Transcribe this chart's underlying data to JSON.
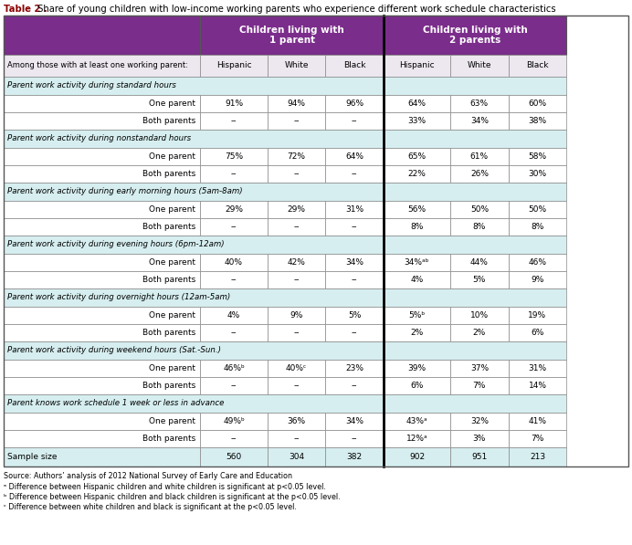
{
  "title_bold": "Table 2 .",
  "title_rest": " Share of young children with low-income working parents who experience different work schedule characteristics",
  "header1": [
    "Children living with\n1 parent",
    "Children living with\n2 parents"
  ],
  "header2": [
    "Hispanic",
    "White",
    "Black",
    "Hispanic",
    "White",
    "Black"
  ],
  "col_label": "Among those with at least one working parent:",
  "sections": [
    {
      "label": "Parent work activity during standard hours",
      "rows": [
        {
          "name": "One parent",
          "vals": [
            "91%",
            "94%",
            "96%",
            "64%",
            "63%",
            "60%"
          ]
        },
        {
          "name": "Both parents",
          "vals": [
            "--",
            "--",
            "--",
            "33%",
            "34%",
            "38%"
          ]
        }
      ]
    },
    {
      "label": "Parent work activity during nonstandard hours",
      "rows": [
        {
          "name": "One parent",
          "vals": [
            "75%",
            "72%",
            "64%",
            "65%",
            "61%",
            "58%"
          ]
        },
        {
          "name": "Both parents",
          "vals": [
            "--",
            "--",
            "--",
            "22%",
            "26%",
            "30%"
          ]
        }
      ]
    },
    {
      "label": "Parent work activity during early morning hours (5am-8am)",
      "rows": [
        {
          "name": "One parent",
          "vals": [
            "29%",
            "29%",
            "31%",
            "56%",
            "50%",
            "50%"
          ]
        },
        {
          "name": "Both parents",
          "vals": [
            "--",
            "--",
            "--",
            "8%",
            "8%",
            "8%"
          ]
        }
      ]
    },
    {
      "label": "Parent work activity during evening hours (6pm-12am)",
      "rows": [
        {
          "name": "One parent",
          "vals": [
            "40%",
            "42%",
            "34%",
            "34%ᵃᵇ",
            "44%",
            "46%"
          ]
        },
        {
          "name": "Both parents",
          "vals": [
            "--",
            "--",
            "--",
            "4%",
            "5%",
            "9%"
          ]
        }
      ]
    },
    {
      "label": "Parent work activity during overnight hours (12am-5am)",
      "rows": [
        {
          "name": "One parent",
          "vals": [
            "4%",
            "9%",
            "5%",
            "5%ᵇ",
            "10%",
            "19%"
          ]
        },
        {
          "name": "Both parents",
          "vals": [
            "--",
            "--",
            "--",
            "2%",
            "2%",
            "6%"
          ]
        }
      ]
    },
    {
      "label": "Parent work activity during weekend hours (Sat.-Sun.)",
      "rows": [
        {
          "name": "One parent",
          "vals": [
            "46%ᵇ",
            "40%ᶜ",
            "23%",
            "39%",
            "37%",
            "31%"
          ]
        },
        {
          "name": "Both parents",
          "vals": [
            "--",
            "--",
            "--",
            "6%",
            "7%",
            "14%"
          ]
        }
      ]
    },
    {
      "label": "Parent knows work schedule 1 week or less in advance",
      "rows": [
        {
          "name": "One parent",
          "vals": [
            "49%ᵇ",
            "36%",
            "34%",
            "43%ᵃ",
            "32%",
            "41%"
          ]
        },
        {
          "name": "Both parents",
          "vals": [
            "--",
            "--",
            "--",
            "12%ᵃ",
            "3%",
            "7%"
          ]
        }
      ]
    }
  ],
  "sample_row": [
    "560",
    "304",
    "382",
    "902",
    "951",
    "213"
  ],
  "footnotes": [
    "Source: Authors’ analysis of 2012 National Survey of Early Care and Education",
    "ᵃ Difference between Hispanic children and white children is significant at p<0.05 level.",
    "ᵇ Difference between Hispanic children and black children is significant at the p<0.05 level.",
    "ᶜ Difference between white children and black is significant at the p<0.05 level."
  ],
  "header_bg": "#7B2D8B",
  "subheader_row_bg": "#EDE7F0",
  "section_label_bg": "#D6EEF0",
  "data_row_bg": "#FFFFFF",
  "sample_row_bg": "#D6EEF0",
  "border_color": "#888888",
  "header_text_color": "#FFFFFF",
  "body_text_color": "#000000",
  "title_bold_color": "#8B0000",
  "title_normal_color": "#333333",
  "footnote_ab_color": "#7B2D8B"
}
